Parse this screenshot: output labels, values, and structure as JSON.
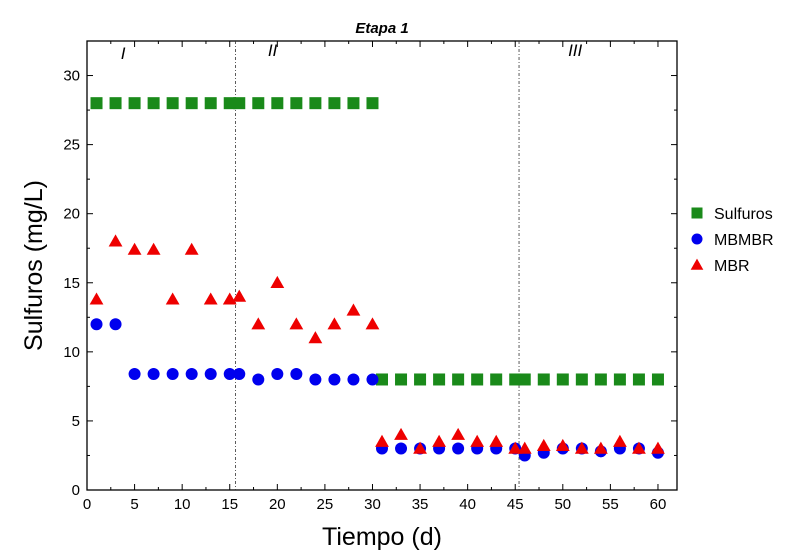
{
  "chart_data": {
    "type": "scatter",
    "title": "Etapa 1",
    "xlabel": "Tiempo (d)",
    "ylabel": "Sulfuros (mg/L)",
    "xlim": [
      0,
      62
    ],
    "ylim": [
      0,
      32.5
    ],
    "xticks": [
      0,
      5,
      10,
      15,
      20,
      25,
      30,
      35,
      40,
      45,
      50,
      55,
      60
    ],
    "yticks": [
      0,
      5,
      10,
      15,
      20,
      25,
      30
    ],
    "grid": false,
    "legend_position": "right",
    "phase_separators": [
      15.6,
      45.4
    ],
    "phase_labels": [
      {
        "text": "I",
        "x": 3.8,
        "y": 31.2
      },
      {
        "text": "II",
        "x": 19.5,
        "y": 31.4
      },
      {
        "text": "III",
        "x": 51.3,
        "y": 31.4
      }
    ],
    "series": [
      {
        "name": "Sulfuros",
        "marker": "square",
        "color": "#1a8a1a",
        "x": [
          1,
          3,
          5,
          7,
          9,
          11,
          13,
          15,
          16,
          18,
          20,
          22,
          24,
          26,
          28,
          30,
          31,
          33,
          35,
          37,
          39,
          41,
          43,
          45,
          46,
          48,
          50,
          52,
          54,
          56,
          58,
          60
        ],
        "y": [
          28,
          28,
          28,
          28,
          28,
          28,
          28,
          28,
          28,
          28,
          28,
          28,
          28,
          28,
          28,
          28,
          8,
          8,
          8,
          8,
          8,
          8,
          8,
          8,
          8,
          8,
          8,
          8,
          8,
          8,
          8,
          8
        ]
      },
      {
        "name": "MBMBR",
        "marker": "circle",
        "color": "#0000ee",
        "x": [
          1,
          3,
          5,
          7,
          9,
          11,
          13,
          15,
          16,
          18,
          20,
          22,
          24,
          26,
          28,
          30,
          31,
          33,
          35,
          37,
          39,
          41,
          43,
          45,
          46,
          48,
          50,
          52,
          54,
          56,
          58,
          60
        ],
        "y": [
          12,
          12,
          8.4,
          8.4,
          8.4,
          8.4,
          8.4,
          8.4,
          8.4,
          8,
          8.4,
          8.4,
          8,
          8,
          8,
          8,
          3,
          3,
          3,
          3,
          3,
          3,
          3,
          3,
          2.5,
          2.7,
          3,
          3,
          2.8,
          3,
          3,
          2.7
        ]
      },
      {
        "name": "MBR",
        "marker": "triangle",
        "color": "#ee0000",
        "x": [
          1,
          3,
          5,
          7,
          9,
          11,
          13,
          15,
          16,
          18,
          20,
          22,
          24,
          26,
          28,
          30,
          31,
          33,
          35,
          37,
          39,
          41,
          43,
          45,
          46,
          48,
          50,
          52,
          54,
          56,
          58,
          60
        ],
        "y": [
          13.8,
          18,
          17.4,
          17.4,
          13.8,
          17.4,
          13.8,
          13.8,
          14,
          12,
          15,
          12,
          11,
          12,
          13,
          12,
          3.5,
          4,
          3,
          3.5,
          4,
          3.5,
          3.5,
          3,
          3,
          3.2,
          3.2,
          3,
          3,
          3.5,
          3,
          3
        ]
      }
    ]
  }
}
